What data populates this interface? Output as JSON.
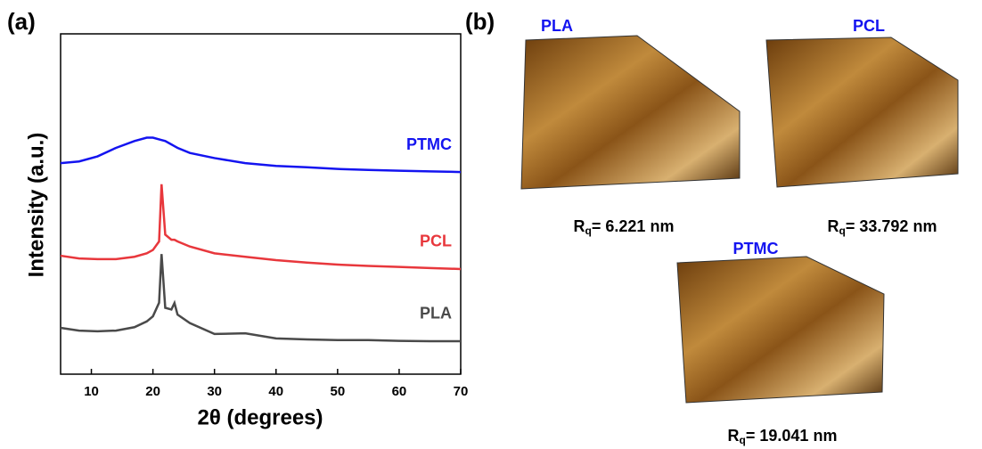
{
  "chart_data": {
    "type": "line",
    "panel_label": "(a)",
    "x_label": "2θ (degrees)",
    "y_label": "Intensity (a.u.)",
    "x": [
      5,
      8,
      11,
      14,
      17,
      19,
      20,
      21,
      21.4,
      22,
      23,
      23.5,
      24,
      26,
      30,
      35,
      40,
      45,
      50,
      55,
      60,
      65,
      70
    ],
    "series": [
      {
        "name": "PTMC",
        "color": "#1414f0",
        "values": [
          6.2,
          6.25,
          6.4,
          6.65,
          6.85,
          6.95,
          6.95,
          6.9,
          6.88,
          6.85,
          6.75,
          6.7,
          6.65,
          6.5,
          6.35,
          6.2,
          6.12,
          6.08,
          6.03,
          6.0,
          5.98,
          5.96,
          5.94
        ]
      },
      {
        "name": "PCL",
        "color": "#e8373c",
        "values": [
          3.48,
          3.4,
          3.38,
          3.38,
          3.45,
          3.55,
          3.65,
          3.9,
          5.58,
          4.1,
          3.95,
          3.95,
          3.9,
          3.75,
          3.55,
          3.45,
          3.35,
          3.28,
          3.22,
          3.18,
          3.15,
          3.12,
          3.09
        ]
      },
      {
        "name": "PLA",
        "color": "#4a4a4a",
        "values": [
          1.36,
          1.28,
          1.26,
          1.28,
          1.38,
          1.55,
          1.7,
          2.1,
          3.53,
          1.95,
          1.9,
          2.09,
          1.75,
          1.5,
          1.18,
          1.2,
          1.05,
          1.02,
          1.0,
          1.0,
          0.98,
          0.97,
          0.97
        ]
      }
    ],
    "xlim": [
      5,
      70
    ],
    "xticks": [
      10,
      20,
      30,
      40,
      50,
      60,
      70
    ],
    "ylim": [
      0,
      10
    ]
  },
  "afm": {
    "panel_label": "(b)",
    "images": [
      {
        "title": "PLA",
        "r_symbol": "R",
        "r_sub": "q",
        "r_text": "= 6.221 nm"
      },
      {
        "title": "PCL",
        "r_symbol": "R",
        "r_sub": "q",
        "r_text": "= 33.792 nm"
      },
      {
        "title": "PTMC",
        "r_symbol": "R",
        "r_sub": "q",
        "r_text": "= 19.041 nm"
      }
    ]
  }
}
